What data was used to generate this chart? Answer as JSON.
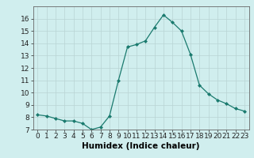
{
  "x": [
    0,
    1,
    2,
    3,
    4,
    5,
    6,
    7,
    8,
    9,
    10,
    11,
    12,
    13,
    14,
    15,
    16,
    17,
    18,
    19,
    20,
    21,
    22,
    23
  ],
  "y": [
    8.2,
    8.1,
    7.9,
    7.7,
    7.7,
    7.5,
    7.0,
    7.2,
    8.1,
    11.0,
    13.7,
    13.9,
    14.2,
    15.3,
    16.3,
    15.7,
    15.0,
    13.1,
    10.6,
    9.9,
    9.4,
    9.1,
    8.7,
    8.5
  ],
  "line_color": "#1a7a6e",
  "marker": "D",
  "marker_size": 2.0,
  "bg_color": "#d0eeee",
  "grid_color": "#b8d4d4",
  "xlabel": "Humidex (Indice chaleur)",
  "xlim": [
    -0.5,
    23.5
  ],
  "ylim": [
    7,
    17
  ],
  "yticks": [
    7,
    8,
    9,
    10,
    11,
    12,
    13,
    14,
    15,
    16
  ],
  "xticks": [
    0,
    1,
    2,
    3,
    4,
    5,
    6,
    7,
    8,
    9,
    10,
    11,
    12,
    13,
    14,
    15,
    16,
    17,
    18,
    19,
    20,
    21,
    22,
    23
  ],
  "tick_fontsize": 6.5,
  "xlabel_fontsize": 7.5
}
